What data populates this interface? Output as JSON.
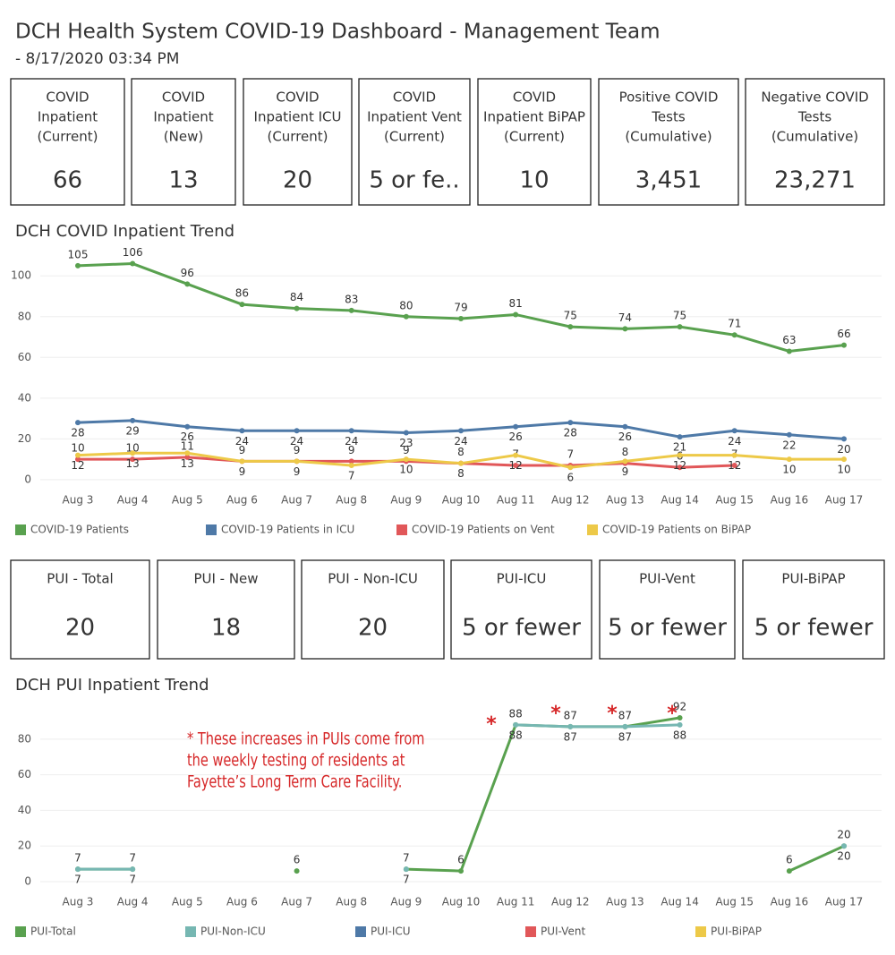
{
  "header": {
    "title": "DCH Health System COVID-19 Dashboard - Management Team",
    "subtitle": "- 8/17/2020 03:34 PM"
  },
  "kpis": [
    {
      "label": [
        "COVID",
        "Inpatient",
        "(Current)"
      ],
      "value": "66"
    },
    {
      "label": [
        "COVID",
        "Inpatient",
        "(New)"
      ],
      "value": "13"
    },
    {
      "label": [
        "COVID",
        "Inpatient ICU",
        "(Current)"
      ],
      "value": "20"
    },
    {
      "label": [
        "COVID",
        "Inpatient Vent",
        "(Current)"
      ],
      "value": "5 or fe.."
    },
    {
      "label": [
        "COVID",
        "Inpatient BiPAP",
        "(Current)"
      ],
      "value": "10"
    },
    {
      "label": [
        "Positive COVID",
        "Tests",
        "(Cumulative)"
      ],
      "value": "3,451"
    },
    {
      "label": [
        "Negative COVID",
        "Tests",
        "(Cumulative)"
      ],
      "value": "23,271"
    }
  ],
  "pui_kpis": [
    {
      "label": "PUI - Total",
      "value": "20"
    },
    {
      "label": "PUI - New",
      "value": "18"
    },
    {
      "label": "PUI - Non-ICU",
      "value": "20"
    },
    {
      "label": "PUI-ICU",
      "value": "5 or fewer"
    },
    {
      "label": "PUI-Vent",
      "value": "5 or fewer"
    },
    {
      "label": "PUI-BiPAP",
      "value": "5 or fewer"
    }
  ],
  "chart_data": [
    {
      "type": "line",
      "title": "DCH COVID Inpatient Trend",
      "categories": [
        "Aug 3",
        "Aug 4",
        "Aug 5",
        "Aug 6",
        "Aug 7",
        "Aug 8",
        "Aug 9",
        "Aug 10",
        "Aug 11",
        "Aug 12",
        "Aug 13",
        "Aug 14",
        "Aug 15",
        "Aug 16",
        "Aug 17"
      ],
      "ylim": [
        -4,
        108
      ],
      "yticks": [
        0,
        20,
        40,
        60,
        80,
        100
      ],
      "grid": true,
      "series": [
        {
          "name": "COVID-19 Patients",
          "color": "#59a14f",
          "values": [
            105,
            106,
            96,
            86,
            84,
            83,
            80,
            79,
            81,
            75,
            74,
            75,
            71,
            63,
            66
          ]
        },
        {
          "name": "COVID-19 Patients in ICU",
          "color": "#4e79a7",
          "values": [
            28,
            29,
            26,
            24,
            24,
            24,
            23,
            24,
            26,
            28,
            26,
            21,
            24,
            22,
            20
          ]
        },
        {
          "name": "COVID-19 Patients on Vent",
          "color": "#e15759",
          "values": [
            10,
            10,
            11,
            9,
            9,
            9,
            9,
            8,
            7,
            7,
            8,
            6,
            7,
            null,
            null
          ]
        },
        {
          "name": "COVID-19 Patients on BiPAP",
          "color": "#edc948",
          "values": [
            12,
            13,
            13,
            9,
            9,
            7,
            10,
            8,
            12,
            6,
            9,
            12,
            12,
            10,
            10
          ]
        }
      ]
    },
    {
      "type": "line",
      "title": "DCH PUI Inpatient Trend",
      "categories": [
        "Aug 3",
        "Aug 4",
        "Aug 5",
        "Aug 6",
        "Aug 7",
        "Aug 8",
        "Aug 9",
        "Aug 10",
        "Aug 11",
        "Aug 12",
        "Aug 13",
        "Aug 14",
        "Aug 15",
        "Aug 16",
        "Aug 17"
      ],
      "ylim": [
        -5,
        98
      ],
      "yticks": [
        0,
        20,
        40,
        60,
        80
      ],
      "grid": true,
      "annotation": [
        "* These increases in PUIs come from",
        "the weekly testing of residents at",
        "Fayette’s Long Term Care Facility."
      ],
      "asterisk": "*",
      "series": [
        {
          "name": "PUI-Total",
          "color": "#59a14f",
          "values": [
            7,
            7,
            null,
            null,
            6,
            null,
            7,
            6,
            88,
            87,
            87,
            92,
            null,
            6,
            20
          ]
        },
        {
          "name": "PUI-Non-ICU",
          "color": "#76b7b2",
          "values": [
            7,
            7,
            null,
            null,
            null,
            null,
            7,
            null,
            88,
            87,
            87,
            88,
            null,
            null,
            20
          ]
        },
        {
          "name": "PUI-ICU",
          "color": "#4e79a7",
          "values": [
            null,
            null,
            null,
            null,
            null,
            null,
            null,
            null,
            null,
            null,
            null,
            null,
            null,
            null,
            null
          ]
        },
        {
          "name": "PUI-Vent",
          "color": "#e15759",
          "values": [
            null,
            null,
            null,
            null,
            null,
            null,
            null,
            null,
            null,
            null,
            null,
            null,
            null,
            null,
            null
          ]
        },
        {
          "name": "PUI-BiPAP",
          "color": "#edc948",
          "values": [
            null,
            null,
            null,
            null,
            null,
            null,
            null,
            null,
            null,
            null,
            null,
            null,
            null,
            null,
            null
          ]
        }
      ]
    }
  ]
}
